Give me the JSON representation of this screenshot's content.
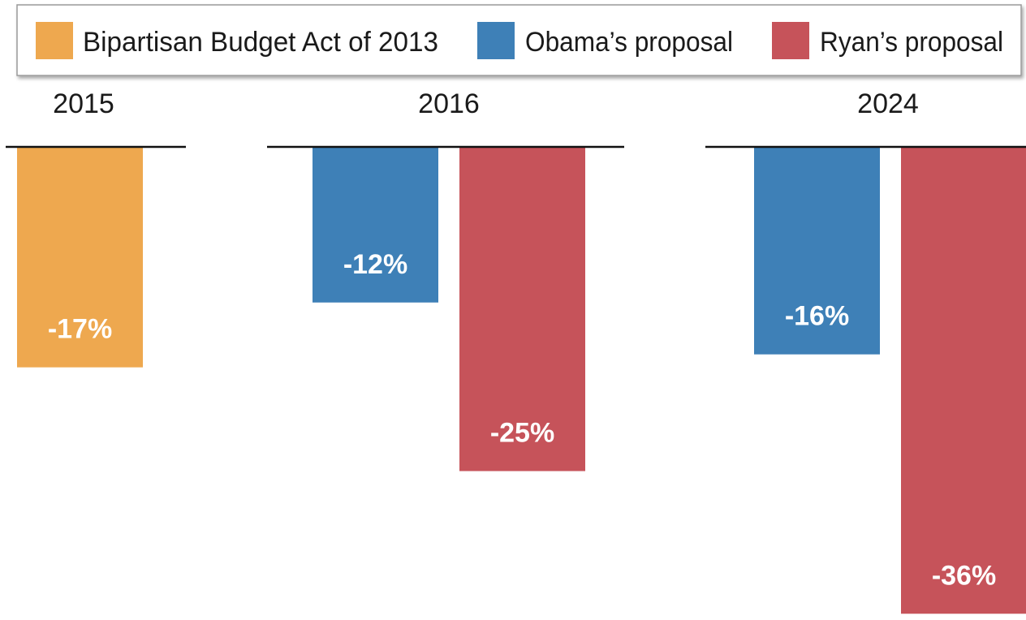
{
  "chart_data": {
    "type": "bar",
    "categories": [
      "2015",
      "2016",
      "2024"
    ],
    "series": [
      {
        "name": "Bipartisan Budget Act of 2013",
        "color": "#eea84f",
        "values": [
          -17,
          null,
          null
        ],
        "labels": [
          "-17%",
          null,
          null
        ]
      },
      {
        "name": "Obama’s proposal",
        "color": "#3e80b7",
        "values": [
          null,
          -12,
          -16
        ],
        "labels": [
          null,
          "-12%",
          "-16%"
        ]
      },
      {
        "name": "Ryan’s proposal",
        "color": "#c6535a",
        "values": [
          null,
          -25,
          -36
        ],
        "labels": [
          null,
          "-25%",
          "-36%"
        ]
      }
    ],
    "title": "",
    "xlabel": "",
    "ylabel": "",
    "ylim": [
      -37,
      0
    ],
    "grid": false,
    "legend_position": "top"
  }
}
